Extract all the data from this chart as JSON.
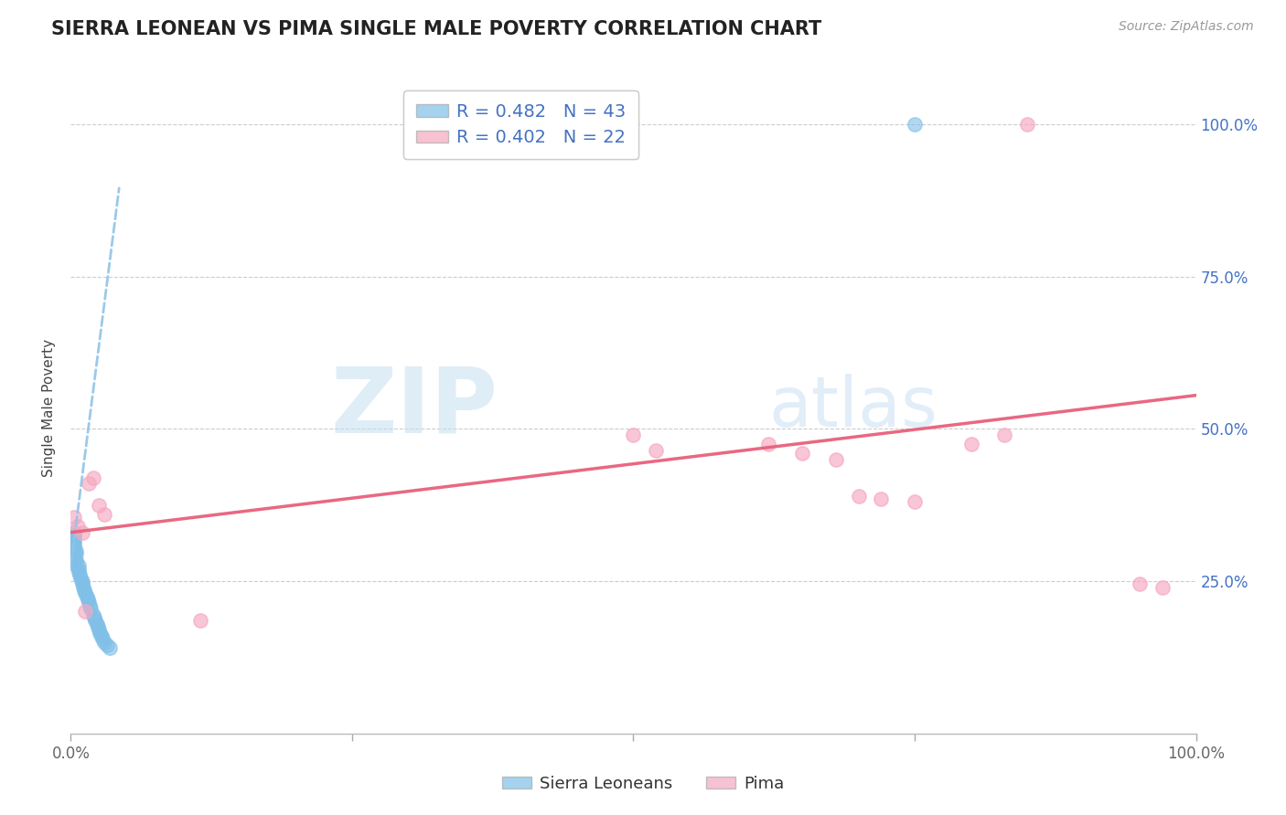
{
  "title": "SIERRA LEONEAN VS PIMA SINGLE MALE POVERTY CORRELATION CHART",
  "source": "Source: ZipAtlas.com",
  "ylabel": "Single Male Poverty",
  "legend_label1": "R = 0.482   N = 43",
  "legend_label2": "R = 0.402   N = 22",
  "legend_group1": "Sierra Leoneans",
  "legend_group2": "Pima",
  "blue_scatter_color": "#7fbfe8",
  "pink_scatter_color": "#f5a8c0",
  "blue_trend_color": "#90c4e8",
  "pink_trend_color": "#e8607a",
  "grid_color": "#cccccc",
  "blue_scatter_x": [
    0.003,
    0.003,
    0.003,
    0.003,
    0.003,
    0.003,
    0.003,
    0.003,
    0.003,
    0.003,
    0.005,
    0.005,
    0.005,
    0.005,
    0.005,
    0.007,
    0.007,
    0.007,
    0.008,
    0.009,
    0.01,
    0.01,
    0.011,
    0.012,
    0.013,
    0.014,
    0.015,
    0.016,
    0.017,
    0.018,
    0.02,
    0.021,
    0.022,
    0.023,
    0.024,
    0.025,
    0.026,
    0.027,
    0.028,
    0.03,
    0.032,
    0.035,
    0.75
  ],
  "blue_scatter_y": [
    0.285,
    0.29,
    0.295,
    0.3,
    0.305,
    0.31,
    0.315,
    0.32,
    0.325,
    0.33,
    0.275,
    0.28,
    0.285,
    0.295,
    0.3,
    0.265,
    0.27,
    0.275,
    0.26,
    0.255,
    0.245,
    0.25,
    0.24,
    0.235,
    0.23,
    0.225,
    0.22,
    0.215,
    0.21,
    0.205,
    0.195,
    0.19,
    0.185,
    0.18,
    0.175,
    0.17,
    0.165,
    0.16,
    0.155,
    0.15,
    0.145,
    0.14,
    1.0
  ],
  "pink_scatter_x": [
    0.003,
    0.006,
    0.01,
    0.013,
    0.016,
    0.02,
    0.025,
    0.03,
    0.115,
    0.5,
    0.52,
    0.62,
    0.65,
    0.68,
    0.7,
    0.72,
    0.75,
    0.8,
    0.83,
    0.85,
    0.95,
    0.97
  ],
  "pink_scatter_y": [
    0.355,
    0.34,
    0.33,
    0.2,
    0.41,
    0.42,
    0.375,
    0.36,
    0.185,
    0.49,
    0.465,
    0.475,
    0.46,
    0.45,
    0.39,
    0.385,
    0.38,
    0.475,
    0.49,
    1.0,
    0.245,
    0.24
  ],
  "blue_trend_x": [
    0.0,
    0.043
  ],
  "blue_trend_y": [
    0.275,
    0.895
  ],
  "pink_trend_x": [
    0.0,
    1.0
  ],
  "pink_trend_y": [
    0.33,
    0.555
  ],
  "xmin": 0.0,
  "xmax": 1.0,
  "ymin": 0.0,
  "ymax": 1.07
}
